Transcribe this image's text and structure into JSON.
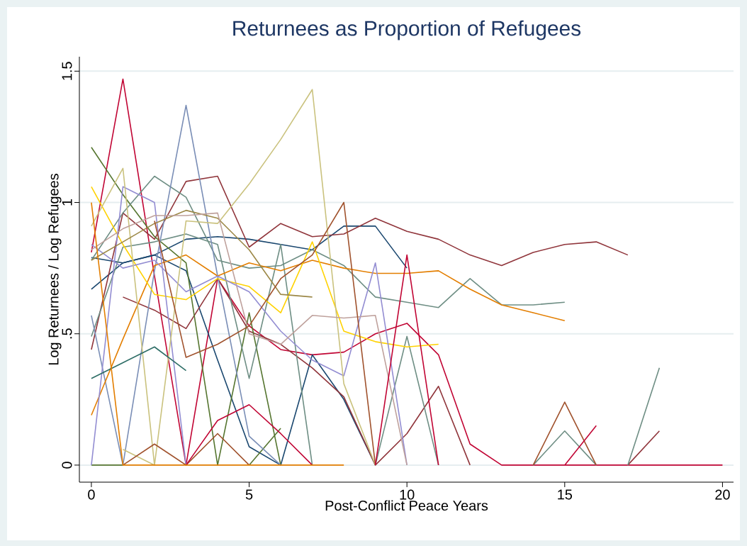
{
  "chart_data": {
    "type": "line",
    "title": "Returnees as Proportion of Refugees",
    "xlabel": "Post-Conflict Peace Years",
    "ylabel": "Log Returnees / Log Refugees",
    "xlim": [
      -0.38,
      20.35
    ],
    "ylim": [
      -0.065,
      1.555
    ],
    "xticks": [
      0,
      5,
      10,
      15,
      20
    ],
    "yticks": [
      0,
      {
        "value": 0.5,
        "label": ".5"
      },
      1,
      1.5
    ],
    "grid": "y",
    "line_style": "solid",
    "series": [
      {
        "color": "#c10534",
        "x": [
          0,
          1,
          2,
          3,
          4,
          5,
          6,
          7,
          8,
          9,
          10,
          11,
          12,
          13,
          14,
          15,
          16,
          17,
          18,
          19,
          20
        ],
        "values": [
          0.81,
          1.47,
          0.72,
          0,
          0.71,
          0.53,
          0.44,
          0.42,
          0.43,
          0.5,
          0.54,
          0.42,
          0.08,
          0,
          0,
          0,
          0,
          0,
          0,
          0,
          0
        ]
      },
      {
        "color": "#1a476f",
        "x": [
          0,
          1,
          2,
          3,
          4,
          5,
          6,
          7,
          8,
          9,
          10
        ],
        "values": [
          0.67,
          0.77,
          0.8,
          0.86,
          0.87,
          0.86,
          0.84,
          0.82,
          0.91,
          0.91,
          0.75
        ]
      },
      {
        "color": "#1a476f",
        "x": [
          0,
          1,
          2,
          3,
          4,
          5,
          6,
          7,
          8,
          9
        ],
        "values": [
          0.79,
          0.77,
          0.8,
          0.74,
          0.4,
          0.07,
          0,
          0.42,
          0.25,
          0
        ]
      },
      {
        "color": "#90353b",
        "x": [
          0,
          1,
          2,
          3,
          4,
          5,
          6,
          7,
          8,
          9,
          10,
          11,
          12,
          13,
          14,
          15,
          16,
          17
        ],
        "values": [
          0.44,
          0.96,
          0.86,
          1.08,
          1.1,
          0.83,
          0.92,
          0.87,
          0.88,
          0.94,
          0.89,
          0.86,
          0.8,
          0.76,
          0.81,
          0.84,
          0.85,
          0.8
        ]
      },
      {
        "color": "#90353b",
        "x": [
          1,
          2,
          3,
          4,
          5,
          6,
          7,
          8,
          9,
          10,
          11,
          12
        ],
        "values": [
          0.64,
          0.59,
          0.52,
          0.71,
          0.51,
          0.46,
          0.37,
          0.26,
          0,
          0.12,
          0.3,
          0
        ]
      },
      {
        "color": "#90353b",
        "x": [
          17,
          18
        ],
        "values": [
          0,
          0.13
        ]
      },
      {
        "color": "#55752f",
        "x": [
          0,
          1,
          2,
          3,
          4,
          5,
          6
        ],
        "values": [
          1.21,
          1.03,
          0.87,
          0.77,
          0,
          0.58,
          0
        ]
      },
      {
        "color": "#55752f",
        "x": [
          0,
          1
        ],
        "values": [
          0,
          0
        ]
      },
      {
        "color": "#55752f",
        "x": [
          5,
          6
        ],
        "values": [
          0,
          0.14
        ]
      },
      {
        "color": "#6e8e84",
        "x": [
          0,
          1,
          2,
          3,
          4,
          5,
          6,
          7,
          8,
          9,
          10,
          11,
          12,
          13,
          14,
          15
        ],
        "values": [
          0.78,
          0.96,
          1.1,
          1.02,
          0.78,
          0.75,
          0.76,
          0.82,
          0.76,
          0.64,
          0.62,
          0.6,
          0.71,
          0.61,
          0.61,
          0.62
        ]
      },
      {
        "color": "#6e8e84",
        "x": [
          0,
          1,
          2,
          3,
          4,
          5,
          6,
          7
        ],
        "values": [
          0.49,
          0.83,
          0.85,
          0.88,
          0.84,
          0.33,
          0.84,
          0
        ]
      },
      {
        "color": "#6e8e84",
        "x": [
          9,
          10,
          11
        ],
        "values": [
          0,
          0.49,
          0
        ]
      },
      {
        "color": "#6e8e84",
        "x": [
          14,
          15,
          16
        ],
        "values": [
          0,
          0.13,
          0
        ]
      },
      {
        "color": "#6e8e84",
        "x": [
          17,
          18
        ],
        "values": [
          0,
          0.37
        ]
      },
      {
        "color": "#7a8eb6",
        "x": [
          0,
          1,
          2,
          3,
          4,
          5,
          6
        ],
        "values": [
          0.57,
          0,
          0.74,
          1.37,
          0.72,
          0.11,
          0
        ]
      },
      {
        "color": "#e37e00",
        "x": [
          0,
          1,
          2,
          3,
          4,
          5,
          6,
          7,
          8,
          9,
          10,
          11,
          12,
          13,
          14,
          15
        ],
        "values": [
          0.19,
          0.48,
          0.76,
          0.8,
          0.72,
          0.77,
          0.74,
          0.78,
          0.75,
          0.73,
          0.73,
          0.74,
          0.67,
          0.61,
          0.58,
          0.55
        ]
      },
      {
        "color": "#ffd200",
        "x": [
          0,
          1,
          2,
          3,
          4,
          5,
          6,
          7,
          8,
          9,
          10,
          11
        ],
        "values": [
          1.06,
          0.84,
          0.65,
          0.63,
          0.71,
          0.68,
          0.58,
          0.85,
          0.51,
          0.47,
          0.45,
          0.46
        ]
      },
      {
        "color": "#938dd2",
        "x": [
          0,
          1,
          2,
          3,
          4,
          5,
          6,
          7,
          8,
          9,
          10
        ],
        "values": [
          0.84,
          0.75,
          0.78,
          0.66,
          0.72,
          0.66,
          0.51,
          0.4,
          0.34,
          0.77,
          0
        ]
      },
      {
        "color": "#938dd2",
        "x": [
          0,
          1,
          2,
          3
        ],
        "values": [
          0,
          1.06,
          1.0,
          0
        ]
      },
      {
        "color": "#cac27e",
        "x": [
          0,
          1,
          2,
          3,
          4,
          5,
          6,
          7,
          8,
          9
        ],
        "values": [
          0.91,
          1.13,
          0,
          0.93,
          0.92,
          1.07,
          1.24,
          1.43,
          0.31,
          0
        ]
      },
      {
        "color": "#cac27e",
        "x": [
          1,
          2
        ],
        "values": [
          0.06,
          0
        ]
      },
      {
        "color": "#9c8847",
        "x": [
          0,
          1,
          2,
          3,
          4,
          5,
          6,
          7
        ],
        "values": [
          0.78,
          0.85,
          0.92,
          0.97,
          0.94,
          0.82,
          0.65,
          0.64
        ]
      },
      {
        "color": "#bfa19c",
        "x": [
          0,
          1,
          2,
          3,
          4,
          5,
          6,
          7,
          8,
          9,
          10
        ],
        "values": [
          0.82,
          0.9,
          0.95,
          0.95,
          0.96,
          0.5,
          0.46,
          0.57,
          0.56,
          0.57,
          0
        ]
      },
      {
        "color": "#a0522d",
        "x": [
          2,
          3,
          4,
          5,
          6,
          7,
          8,
          9
        ],
        "values": [
          0.93,
          0.41,
          0.46,
          0.53,
          0.71,
          0.8,
          1.0,
          0
        ]
      },
      {
        "color": "#a0522d",
        "x": [
          1,
          2,
          3,
          4,
          5
        ],
        "values": [
          0,
          0.08,
          0,
          0.12,
          0
        ]
      },
      {
        "color": "#a0522d",
        "x": [
          14,
          15,
          16
        ],
        "values": [
          0,
          0.24,
          0
        ]
      },
      {
        "color": "#2d6d66",
        "x": [
          0,
          1,
          2,
          3
        ],
        "values": [
          0.33,
          0.39,
          0.45,
          0.36
        ]
      },
      {
        "color": "#c10534",
        "x": [
          3,
          4,
          5,
          6,
          7
        ],
        "values": [
          0,
          0.17,
          0.23,
          0.12,
          0
        ]
      },
      {
        "color": "#c10534",
        "x": [
          15,
          16
        ],
        "values": [
          0,
          0.15
        ]
      },
      {
        "color": "#c10534",
        "x": [
          9,
          10,
          11
        ],
        "values": [
          0,
          0.8,
          0
        ]
      },
      {
        "color": "#e37e00",
        "x": [
          0,
          1,
          2,
          3,
          4,
          5,
          6,
          7,
          8
        ],
        "values": [
          1.0,
          0,
          0,
          0,
          0,
          0,
          0,
          0,
          0
        ]
      }
    ]
  }
}
